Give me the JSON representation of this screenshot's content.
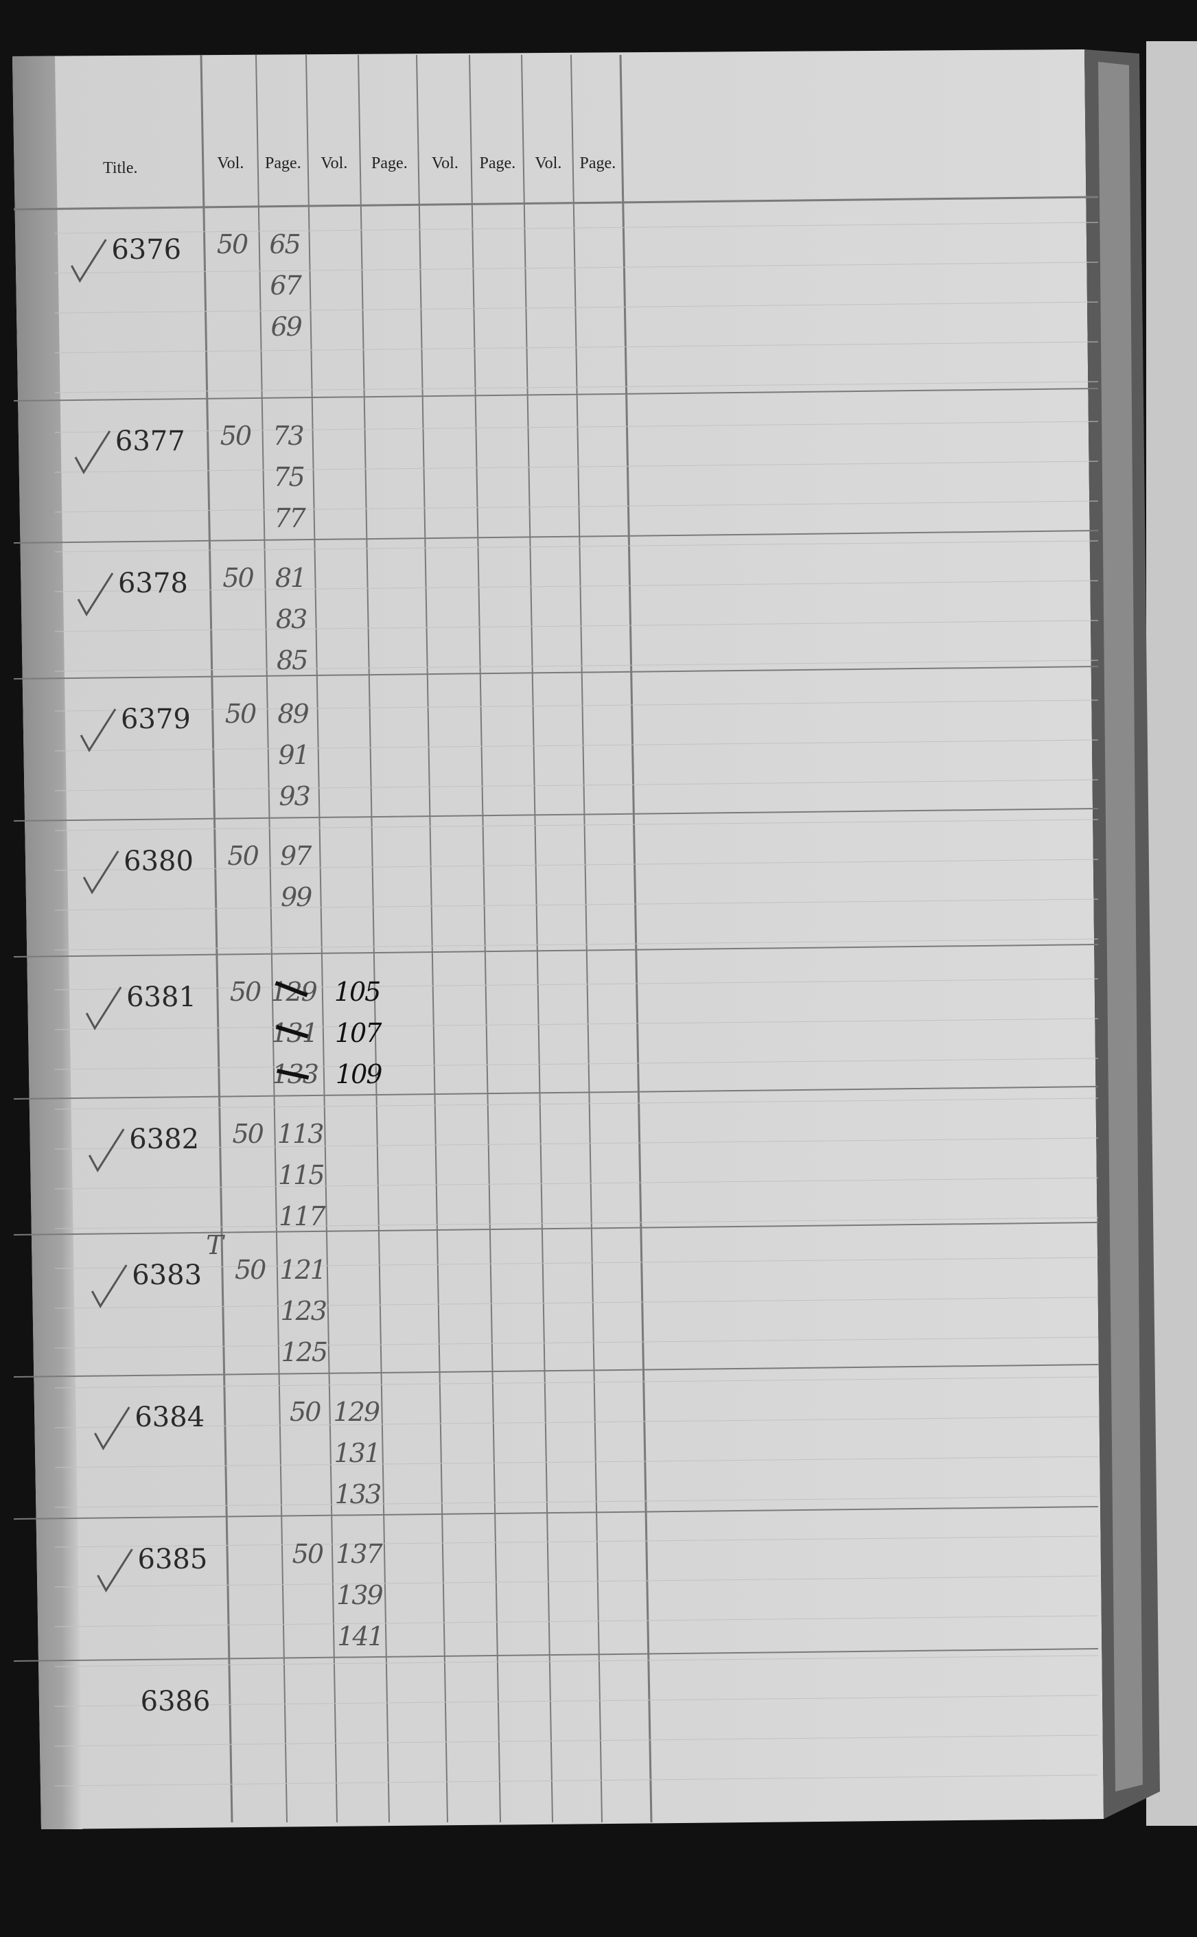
{
  "header": {
    "title": "Title.",
    "columns": [
      "Vol.",
      "Page.",
      "Vol.",
      "Page.",
      "Vol.",
      "Page.",
      "Vol.",
      "Page."
    ]
  },
  "entries": [
    {
      "title": "6376",
      "checked": true,
      "vol": "50",
      "vol_col": 0,
      "pages": [
        "65",
        "67",
        "69"
      ],
      "pages_col": 1
    },
    {
      "title": "6377",
      "checked": true,
      "vol": "50",
      "vol_col": 0,
      "pages": [
        "73",
        "75",
        "77"
      ],
      "pages_col": 1
    },
    {
      "title": "6378",
      "checked": true,
      "vol": "50",
      "vol_col": 0,
      "pages": [
        "81",
        "83",
        "85"
      ],
      "pages_col": 1
    },
    {
      "title": "6379",
      "checked": true,
      "vol": "50",
      "vol_col": 0,
      "pages": [
        "89",
        "91",
        "93"
      ],
      "pages_col": 1
    },
    {
      "title": "6380",
      "checked": true,
      "vol": "50",
      "vol_col": 0,
      "pages": [
        "97",
        "99"
      ],
      "pages_col": 1
    },
    {
      "title": "6381",
      "checked": true,
      "vol": "50",
      "vol_col": 0,
      "pages": [
        "129",
        "131",
        "133"
      ],
      "pages_col": 1,
      "pages_struck": true,
      "corrected_pages": [
        "105",
        "107",
        "109"
      ],
      "corrected_col": 2
    },
    {
      "title": "6382",
      "checked": true,
      "vol": "50",
      "vol_col": 0,
      "pages": [
        "113",
        "115",
        "117"
      ],
      "pages_col": 1
    },
    {
      "title": "6383",
      "checked": true,
      "mark": "T",
      "vol": "50",
      "vol_col": 0,
      "pages": [
        "121",
        "123",
        "125"
      ],
      "pages_col": 1
    },
    {
      "title": "6384",
      "checked": true,
      "vol": "50",
      "vol_col": 1,
      "pages": [
        "129",
        "131",
        "133"
      ],
      "pages_col": 2
    },
    {
      "title": "6385",
      "checked": true,
      "vol": "50",
      "vol_col": 1,
      "pages": [
        "137",
        "139",
        "141"
      ],
      "pages_col": 2
    },
    {
      "title": "6386",
      "checked": false,
      "vol": "",
      "pages": []
    }
  ],
  "colors": {
    "paper": "#d6d6d6",
    "ink": "#2a2a2a",
    "rule": "#8a8a8a",
    "background": "#111111"
  }
}
